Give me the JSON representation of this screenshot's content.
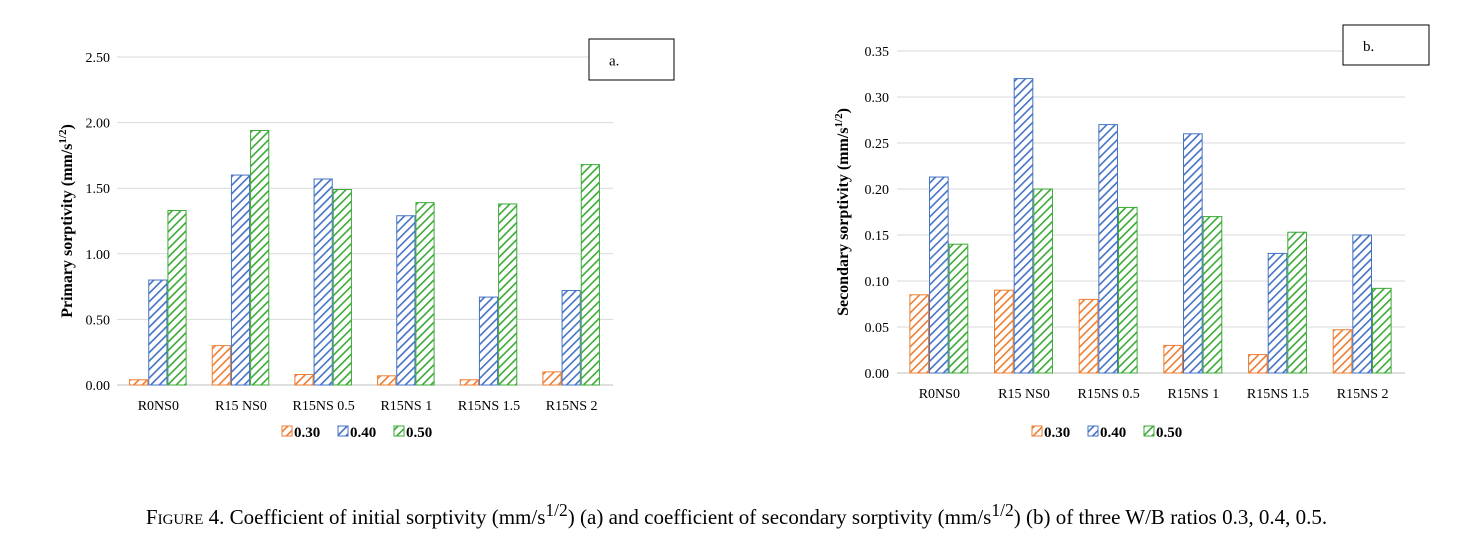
{
  "colors": {
    "0.30": "#ed7d31",
    "0.40": "#4472c4",
    "0.50": "#3aaa35"
  },
  "chart_data": [
    {
      "type": "bar",
      "panel_label": "a.",
      "ylabel": "Primary sorptivity (mm/s",
      "ylabel_sup": "1/2",
      "ylabel_end": ")",
      "ylim": [
        0,
        2.5
      ],
      "yticks": [
        "0.00",
        "0.50",
        "1.00",
        "1.50",
        "2.00",
        "2.50"
      ],
      "grid": true,
      "legend": "bottom",
      "categories": [
        "R0NS0",
        "R15 NS0",
        "R15NS 0.5",
        "R15NS 1",
        "R15NS 1.5",
        "R15NS 2"
      ],
      "series": [
        {
          "name": "0.30",
          "values": [
            0.04,
            0.3,
            0.08,
            0.07,
            0.04,
            0.1
          ]
        },
        {
          "name": "0.40",
          "values": [
            0.8,
            1.6,
            1.57,
            1.29,
            0.67,
            0.72
          ]
        },
        {
          "name": "0.50",
          "values": [
            1.33,
            1.94,
            1.49,
            1.39,
            1.38,
            1.68
          ]
        }
      ]
    },
    {
      "type": "bar",
      "panel_label": "b.",
      "ylabel": "Secondary sorptivity (mm/s",
      "ylabel_sup": "1/2",
      "ylabel_end": ")",
      "ylim": [
        0,
        0.35
      ],
      "yticks": [
        "0.00",
        "0.05",
        "0.10",
        "0.15",
        "0.20",
        "0.25",
        "0.30",
        "0.35"
      ],
      "grid": true,
      "legend": "bottom",
      "categories": [
        "R0NS0",
        "R15 NS0",
        "R15NS 0.5",
        "R15NS 1",
        "R15NS 1.5",
        "R15NS 2"
      ],
      "series": [
        {
          "name": "0.30",
          "values": [
            0.085,
            0.09,
            0.08,
            0.03,
            0.02,
            0.047
          ]
        },
        {
          "name": "0.40",
          "values": [
            0.213,
            0.32,
            0.27,
            0.26,
            0.13,
            0.15
          ]
        },
        {
          "name": "0.50",
          "values": [
            0.14,
            0.2,
            0.18,
            0.17,
            0.153,
            0.092
          ]
        }
      ]
    }
  ],
  "caption": {
    "prefix": "Figure 4.",
    "t1": " Coefficient of initial sorptivity (mm/s",
    "sup1": "1/2",
    "t2": ") (a) and coefficient of secondary sorptivity (mm/s",
    "sup2": "1/2",
    "t3": ") (b) of three W/B ratios 0.3, 0.4, 0.5."
  }
}
